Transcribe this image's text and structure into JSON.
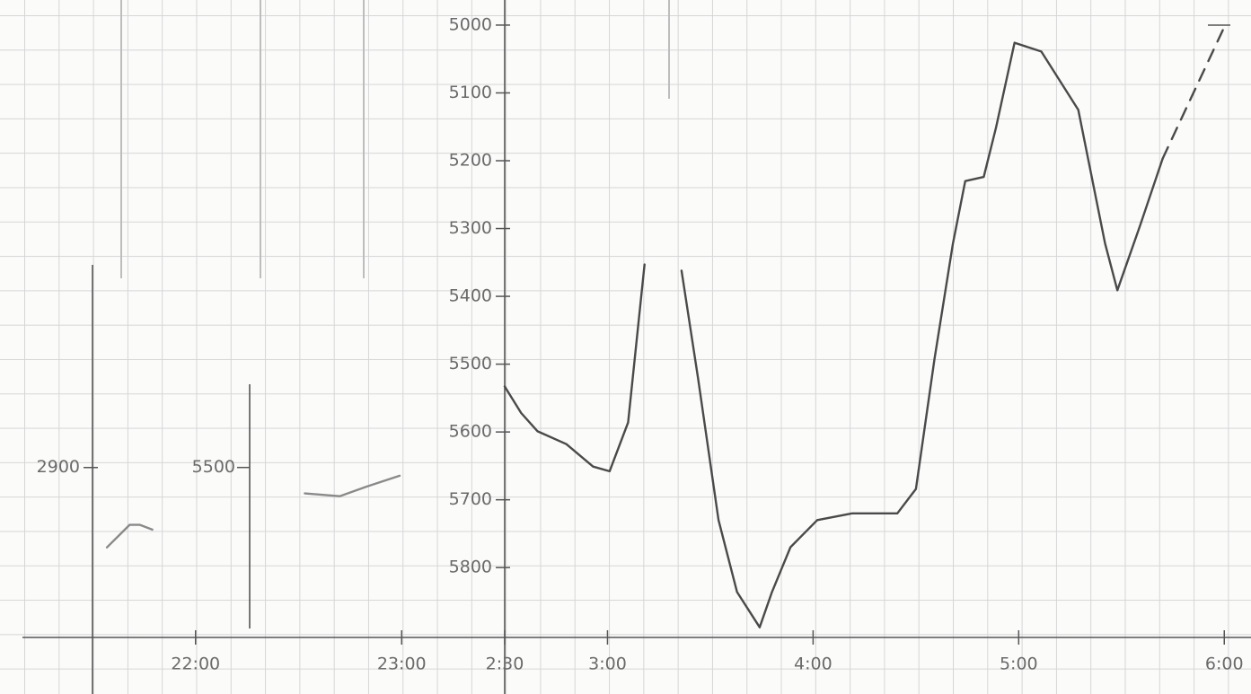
{
  "chart_data": [
    {
      "type": "line",
      "xlim": [
        21.5,
        23.5
      ],
      "xticks": [
        {
          "value": 22,
          "label": "22:00"
        },
        {
          "value": 23,
          "label": "23:00"
        }
      ],
      "ylim": [
        2651,
        3197
      ],
      "yticks": [
        2900
      ],
      "y2lim": [
        5736,
        5378
      ],
      "y2ticks": [
        5500
      ],
      "series": [
        {
          "color": "#8a8a8a",
          "x": [
            21.57,
            21.68,
            21.73,
            21.79,
            null,
            22.53,
            22.7,
            22.83,
            22.99
          ],
          "values": [
            2783,
            2816,
            2816,
            2809,
            null,
            2862,
            2858,
            2872,
            2888
          ]
        }
      ]
    },
    {
      "type": "line",
      "xlim": [
        2.5,
        6.13
      ],
      "xticks": [
        {
          "value": 2.5,
          "label": "2:30"
        },
        {
          "value": 3,
          "label": "3:00"
        },
        {
          "value": 4,
          "label": "4:00"
        },
        {
          "value": 5,
          "label": "5:00"
        },
        {
          "value": 6,
          "label": "6:00"
        }
      ],
      "ylim": [
        5903,
        4963
      ],
      "yticks": [
        5000,
        5100,
        5200,
        5300,
        5400,
        5500,
        5600,
        5700,
        5800
      ],
      "series": [
        {
          "color": "#4a4a4a",
          "dashed": false,
          "x": [
            2.5,
            2.58,
            2.66,
            2.8,
            2.93,
            3.01,
            3.1,
            3.18,
            null,
            3.36,
            3.44,
            3.54,
            3.63,
            3.74,
            3.8,
            3.89,
            4.02,
            4.19,
            4.41,
            4.5,
            4.59,
            4.68,
            4.74,
            4.83,
            4.89,
            4.98,
            5.11,
            5.29,
            5.42,
            5.48,
            5.59,
            5.7
          ],
          "values": [
            5533,
            5572,
            5599,
            5618,
            5651,
            5658,
            5586,
            5353,
            null,
            5362,
            5520,
            5730,
            5836,
            5888,
            5836,
            5770,
            5730,
            5720,
            5720,
            5684,
            5493,
            5322,
            5230,
            5224,
            5151,
            5026,
            5039,
            5125,
            5322,
            5391,
            5296,
            5197
          ]
        },
        {
          "color": "#4a4a4a",
          "dashed": true,
          "x": [
            5.7,
            6.0
          ],
          "values": [
            5197,
            5003
          ]
        }
      ]
    }
  ]
}
